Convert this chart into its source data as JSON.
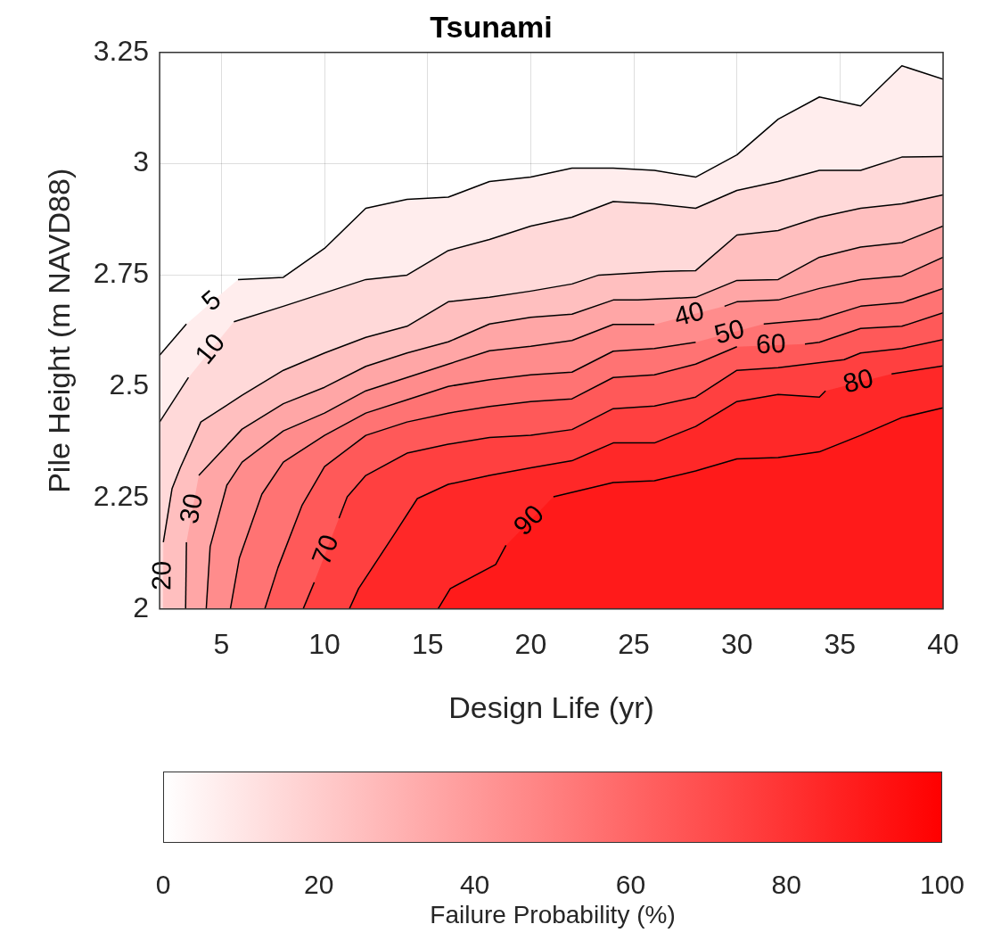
{
  "chart_data": {
    "type": "area",
    "title": "Tsunami",
    "xlabel": "Design Life (yr)",
    "ylabel": "Pile Height (m NAVD88)",
    "clabel": "Failure Probability (%)",
    "clim": [
      0,
      100
    ],
    "cticks": [
      0,
      20,
      40,
      60,
      80,
      100
    ],
    "xlim": [
      2,
      40
    ],
    "xticks": [
      5,
      10,
      15,
      20,
      25,
      30,
      35,
      40
    ],
    "ylim": [
      2,
      3.25
    ],
    "yticks": [
      2,
      2.25,
      2.5,
      2.75,
      3,
      3.25
    ],
    "grid": true,
    "legend": false,
    "series": [
      {
        "name": "5",
        "color": "#ffeded",
        "x": [
          2,
          3.3,
          5.8,
          8,
          10,
          12,
          14,
          16,
          18,
          20,
          22,
          24,
          26,
          28,
          30,
          32,
          34,
          36,
          38,
          40
        ],
        "values": [
          2.57,
          2.64,
          2.74,
          2.745,
          2.81,
          2.9,
          2.92,
          2.925,
          2.96,
          2.97,
          2.99,
          2.99,
          2.985,
          2.97,
          3.02,
          3.1,
          3.15,
          3.13,
          3.22,
          3.19
        ]
      },
      {
        "name": "10",
        "color": "#ffd9d9",
        "x": [
          2,
          3.4,
          5.6,
          8,
          10,
          12,
          14,
          16,
          18,
          20,
          22,
          24,
          26,
          28,
          30,
          32,
          34,
          36,
          38,
          40
        ],
        "values": [
          2.42,
          2.52,
          2.645,
          2.68,
          2.71,
          2.74,
          2.75,
          2.805,
          2.83,
          2.86,
          2.88,
          2.915,
          2.91,
          2.9,
          2.94,
          2.96,
          2.985,
          2.985,
          3.015,
          3.016
        ]
      },
      {
        "name": "20",
        "color": "#ffbfbf",
        "x": [
          2.17,
          2.18,
          2.6,
          3,
          4,
          6,
          8,
          10,
          12,
          14,
          16,
          18,
          20,
          22,
          23.3,
          26.2,
          28,
          30,
          32,
          34,
          36,
          38,
          40
        ],
        "values": [
          2,
          2.15,
          2.27,
          2.317,
          2.42,
          2.48,
          2.536,
          2.575,
          2.61,
          2.635,
          2.69,
          2.7,
          2.714,
          2.73,
          2.75,
          2.758,
          2.76,
          2.84,
          2.85,
          2.88,
          2.9,
          2.91,
          2.93
        ]
      },
      {
        "name": "30",
        "color": "#ffa6a6",
        "x": [
          3.26,
          3.3,
          3.9,
          6,
          8,
          10,
          12,
          14,
          16,
          18,
          20,
          22,
          24,
          25.2,
          28,
          30,
          32,
          34,
          36,
          38,
          40
        ],
        "values": [
          2,
          2.15,
          2.3,
          2.404,
          2.461,
          2.498,
          2.545,
          2.575,
          2.6,
          2.64,
          2.655,
          2.662,
          2.694,
          2.694,
          2.7,
          2.738,
          2.74,
          2.79,
          2.813,
          2.823,
          2.86
        ]
      },
      {
        "name": "40",
        "color": "#ff8c8c",
        "x": [
          4.26,
          4.45,
          5.26,
          6,
          8,
          10,
          12,
          14,
          16,
          18,
          20,
          22,
          24,
          26,
          29.4,
          30,
          32,
          34,
          36,
          38,
          40
        ],
        "values": [
          2,
          2.14,
          2.278,
          2.33,
          2.4,
          2.44,
          2.49,
          2.52,
          2.55,
          2.58,
          2.59,
          2.603,
          2.639,
          2.639,
          2.68,
          2.69,
          2.694,
          2.72,
          2.74,
          2.748,
          2.79
        ]
      },
      {
        "name": "50",
        "color": "#ff7373",
        "x": [
          5.43,
          5.87,
          6.96,
          8,
          10,
          12,
          14,
          16,
          18,
          20,
          22,
          24,
          26,
          28,
          31.3,
          34,
          36,
          38,
          40
        ],
        "values": [
          2,
          2.115,
          2.258,
          2.33,
          2.39,
          2.44,
          2.47,
          2.5,
          2.515,
          2.526,
          2.532,
          2.579,
          2.585,
          2.599,
          2.64,
          2.651,
          2.68,
          2.688,
          2.72
        ]
      },
      {
        "name": "60",
        "color": "#ff5959",
        "x": [
          7.1,
          7.74,
          8.9,
          10,
          12,
          14,
          16,
          18,
          20,
          22,
          24,
          26,
          28,
          30,
          33.3,
          34,
          36,
          38,
          40
        ],
        "values": [
          2,
          2.093,
          2.232,
          2.32,
          2.39,
          2.42,
          2.44,
          2.455,
          2.466,
          2.472,
          2.52,
          2.526,
          2.55,
          2.589,
          2.595,
          2.599,
          2.63,
          2.635,
          2.665
        ]
      },
      {
        "name": "70",
        "color": "#ff4040",
        "x": [
          8.96,
          9.5,
          10.7,
          11.1,
          12,
          14,
          16,
          18,
          20,
          22,
          24,
          26,
          28,
          30,
          32,
          35.2,
          36,
          38,
          40
        ],
        "values": [
          2,
          2.06,
          2.204,
          2.252,
          2.3,
          2.35,
          2.37,
          2.385,
          2.39,
          2.403,
          2.45,
          2.456,
          2.476,
          2.536,
          2.542,
          2.56,
          2.575,
          2.585,
          2.605
        ]
      },
      {
        "name": "80",
        "color": "#ff2828",
        "x": [
          11.2,
          11.65,
          13.4,
          14.5,
          16,
          18,
          20,
          22,
          24,
          26,
          28,
          30,
          32,
          34,
          34.3,
          37.5,
          40
        ],
        "values": [
          2,
          2.046,
          2.169,
          2.248,
          2.28,
          2.3,
          2.317,
          2.333,
          2.373,
          2.373,
          2.41,
          2.466,
          2.482,
          2.476,
          2.49,
          2.528,
          2.546
        ]
      },
      {
        "name": "90",
        "color": "#ff1a1a",
        "x": [
          15.5,
          16.1,
          18.3,
          18.8,
          21.1,
          24,
          26,
          28,
          30,
          32,
          34,
          36,
          38,
          40
        ],
        "values": [
          2,
          2.046,
          2.1,
          2.143,
          2.252,
          2.284,
          2.288,
          2.31,
          2.337,
          2.34,
          2.353,
          2.39,
          2.43,
          2.452
        ]
      }
    ]
  }
}
